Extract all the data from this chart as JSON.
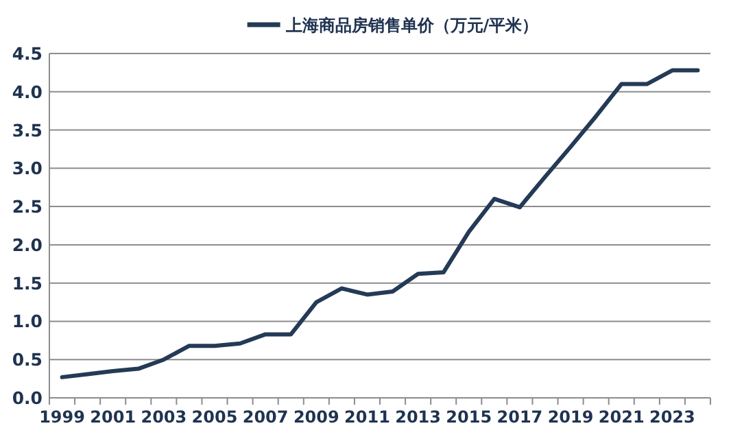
{
  "chart_data": {
    "type": "line",
    "categories": [
      "1999",
      null,
      "2001",
      null,
      "2003",
      null,
      "2005",
      null,
      "2007",
      null,
      "2009",
      null,
      "2011",
      null,
      "2013",
      null,
      "2015",
      null,
      "2017",
      null,
      "2019",
      null,
      "2021",
      null,
      "2023",
      null
    ],
    "series": [
      {
        "name": "上海商品房销售单价（万元/平米）",
        "color": "#243a56",
        "values": [
          0.27,
          0.31,
          0.35,
          0.38,
          0.5,
          0.68,
          0.68,
          0.71,
          0.83,
          0.83,
          1.25,
          1.43,
          1.35,
          1.39,
          1.62,
          1.64,
          2.17,
          2.6,
          2.49,
          2.89,
          3.28,
          3.68,
          4.1,
          4.1,
          4.28,
          4.28
        ]
      }
    ],
    "ylim": [
      0,
      4.5
    ],
    "yticks": [
      {
        "value": 0,
        "label": "0.0"
      },
      {
        "value": 0.5,
        "label": "0.5"
      },
      {
        "value": 1,
        "label": "1.0"
      },
      {
        "value": 1.5,
        "label": "1.5"
      },
      {
        "value": 2,
        "label": "2.0"
      },
      {
        "value": 2.5,
        "label": "2.5"
      },
      {
        "value": 3,
        "label": "3.0"
      },
      {
        "value": 3.5,
        "label": "3.5"
      },
      {
        "value": 4,
        "label": "4.0"
      },
      {
        "value": 4.5,
        "label": "4.5"
      }
    ],
    "grid": "y",
    "legend": "top",
    "marker": "none",
    "line_style": "solid"
  }
}
